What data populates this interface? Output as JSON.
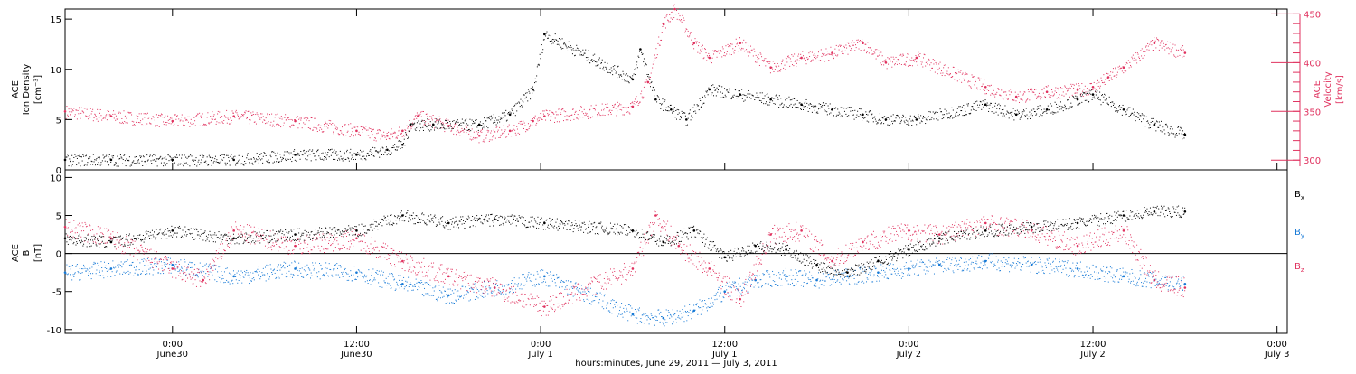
{
  "colors": {
    "black": "#000000",
    "red": "#e0325f",
    "blue": "#1679d6",
    "axis": "#000000"
  },
  "time": {
    "start": "2011-06-29T17:00",
    "end": "2011-07-03T00:40",
    "xticks": [
      {
        "t": "2011-06-30T00:00",
        "time": "0:00",
        "day": "June30"
      },
      {
        "t": "2011-06-30T12:00",
        "time": "12:00",
        "day": "June30"
      },
      {
        "t": "2011-07-01T00:00",
        "time": "0:00",
        "day": "July 1"
      },
      {
        "t": "2011-07-01T12:00",
        "time": "12:00",
        "day": "July 1"
      },
      {
        "t": "2011-07-02T00:00",
        "time": "0:00",
        "day": "July 2"
      },
      {
        "t": "2011-07-02T12:00",
        "time": "12:00",
        "day": "July 2"
      },
      {
        "t": "2011-07-03T00:00",
        "time": "0:00",
        "day": "July 3"
      }
    ],
    "xlabel": "hours:minutes, June 29, 2011 — July  3, 2011"
  },
  "panel1": {
    "ylabel_left": [
      "ACE",
      "Ion Density",
      "[cm⁻³]"
    ],
    "ylabel_right": [
      "ACE",
      "Velocity",
      "[km/s]"
    ],
    "left_range": [
      0,
      16
    ],
    "left_ticks": [
      "0",
      "5",
      "10",
      "15"
    ],
    "right_range": [
      290,
      455
    ],
    "right_ticks": [
      "300",
      "350",
      "400",
      "450"
    ]
  },
  "panel2": {
    "ylabel_left": [
      "ACE",
      "B",
      "[nT]"
    ],
    "range": [
      -10.5,
      11
    ],
    "ticks": [
      "-10",
      "-5",
      "0",
      "5",
      "10"
    ],
    "legend": [
      {
        "label": "B",
        "sub": "x",
        "color": "#000000"
      },
      {
        "label": "B",
        "sub": "y",
        "color": "#1679d6"
      },
      {
        "label": "B",
        "sub": "z",
        "color": "#e0325f"
      }
    ]
  },
  "chart_data": [
    {
      "type": "scatter",
      "title": "",
      "xlabel": "hours:minutes, June 29, 2011 — July  3, 2011",
      "ylabel": "ACE Ion Density [cm⁻³]",
      "ylim": [
        0,
        16
      ],
      "y2label": "ACE Velocity [km/s]",
      "y2lim": [
        290,
        455
      ],
      "series": [
        {
          "name": "Ion Density",
          "color": "#000000",
          "axis": "left",
          "x": [
            "2011-06-29T17:00",
            "2011-06-29T20:00",
            "2011-06-30T00:00",
            "2011-06-30T04:00",
            "2011-06-30T08:00",
            "2011-06-30T12:00",
            "2011-06-30T14:00",
            "2011-06-30T15:00",
            "2011-06-30T15:30",
            "2011-06-30T17:00",
            "2011-06-30T20:00",
            "2011-06-30T22:00",
            "2011-06-30T23:30",
            "2011-07-01T00:15",
            "2011-07-01T06:00",
            "2011-07-01T06:30",
            "2011-07-01T07:30",
            "2011-07-01T08:30",
            "2011-07-01T09:30",
            "2011-07-01T11:00",
            "2011-07-01T13:00",
            "2011-07-01T15:00",
            "2011-07-01T17:00",
            "2011-07-01T19:00",
            "2011-07-01T21:00",
            "2011-07-01T22:30",
            "2011-07-02T00:30",
            "2011-07-02T05:00",
            "2011-07-02T07:00",
            "2011-07-02T09:00",
            "2011-07-02T11:00",
            "2011-07-02T12:00",
            "2011-07-02T14:00",
            "2011-07-02T16:00",
            "2011-07-02T18:00"
          ],
          "y": [
            1.0,
            1.0,
            1.0,
            1.0,
            1.5,
            1.5,
            2.0,
            2.5,
            4.5,
            4.5,
            4.5,
            5.5,
            8.0,
            13.5,
            9.0,
            12.0,
            7.0,
            6.0,
            5.0,
            8.0,
            7.5,
            7.0,
            6.5,
            6.0,
            5.5,
            5.0,
            5.0,
            6.5,
            5.5,
            6.0,
            7.0,
            7.5,
            6.0,
            4.5,
            3.5
          ]
        },
        {
          "name": "Velocity",
          "color": "#e0325f",
          "axis": "right",
          "x": [
            "2011-06-29T17:00",
            "2011-06-29T20:00",
            "2011-06-30T00:00",
            "2011-06-30T04:00",
            "2011-06-30T08:00",
            "2011-06-30T12:00",
            "2011-06-30T14:00",
            "2011-06-30T15:00",
            "2011-06-30T16:00",
            "2011-06-30T18:00",
            "2011-06-30T20:00",
            "2011-06-30T22:00",
            "2011-06-30T23:30",
            "2011-07-01T00:15",
            "2011-07-01T06:00",
            "2011-07-01T07:00",
            "2011-07-01T08:00",
            "2011-07-01T08:45",
            "2011-07-01T10:00",
            "2011-07-01T11:00",
            "2011-07-01T13:00",
            "2011-07-01T15:00",
            "2011-07-01T17:00",
            "2011-07-01T19:00",
            "2011-07-01T21:00",
            "2011-07-01T22:30",
            "2011-07-02T00:30",
            "2011-07-02T05:00",
            "2011-07-02T07:00",
            "2011-07-02T09:00",
            "2011-07-02T11:00",
            "2011-07-02T12:00",
            "2011-07-02T13:00",
            "2011-07-02T14:00",
            "2011-07-02T16:00",
            "2011-07-02T18:00"
          ],
          "y": [
            350,
            345,
            340,
            345,
            340,
            330,
            325,
            330,
            345,
            335,
            325,
            330,
            340,
            345,
            355,
            380,
            440,
            455,
            420,
            405,
            420,
            395,
            405,
            410,
            420,
            400,
            405,
            375,
            365,
            370,
            372,
            375,
            385,
            395,
            420,
            410
          ]
        }
      ]
    },
    {
      "type": "scatter",
      "title": "",
      "xlabel": "hours:minutes, June 29, 2011 — July  3, 2011",
      "ylabel": "ACE B [nT]",
      "ylim": [
        -10.5,
        11
      ],
      "series": [
        {
          "name": "Bx",
          "color": "#000000",
          "x": [
            "2011-06-29T17:00",
            "2011-06-29T20:00",
            "2011-06-30T00:00",
            "2011-06-30T04:00",
            "2011-06-30T08:00",
            "2011-06-30T12:00",
            "2011-06-30T15:00",
            "2011-06-30T18:00",
            "2011-06-30T21:00",
            "2011-07-01T00:15",
            "2011-07-01T06:00",
            "2011-07-01T08:00",
            "2011-07-01T10:00",
            "2011-07-01T12:00",
            "2011-07-01T14:00",
            "2011-07-01T16:00",
            "2011-07-01T18:00",
            "2011-07-01T20:00",
            "2011-07-01T22:00",
            "2011-07-02T00:00",
            "2011-07-02T02:00",
            "2011-07-02T05:00",
            "2011-07-02T08:00",
            "2011-07-02T11:00",
            "2011-07-02T14:00",
            "2011-07-02T16:00",
            "2011-07-02T18:00"
          ],
          "y": [
            2.0,
            1.5,
            3.0,
            2.0,
            2.5,
            3.0,
            5.0,
            4.0,
            4.5,
            4.0,
            3.0,
            1.5,
            3.0,
            -0.5,
            1.0,
            0.5,
            -1.5,
            -2.5,
            -1.0,
            0.5,
            2.0,
            3.0,
            3.5,
            4.0,
            5.0,
            5.5,
            5.5
          ]
        },
        {
          "name": "By",
          "color": "#1679d6",
          "x": [
            "2011-06-29T17:00",
            "2011-06-29T20:00",
            "2011-06-30T00:00",
            "2011-06-30T04:00",
            "2011-06-30T08:00",
            "2011-06-30T12:00",
            "2011-06-30T15:00",
            "2011-06-30T18:00",
            "2011-06-30T21:00",
            "2011-07-01T00:15",
            "2011-07-01T06:00",
            "2011-07-01T08:00",
            "2011-07-01T10:00",
            "2011-07-01T12:00",
            "2011-07-01T14:00",
            "2011-07-01T16:00",
            "2011-07-01T18:00",
            "2011-07-01T20:00",
            "2011-07-01T22:00",
            "2011-07-02T00:00",
            "2011-07-02T02:00",
            "2011-07-02T05:00",
            "2011-07-02T08:00",
            "2011-07-02T11:00",
            "2011-07-02T14:00",
            "2011-07-02T16:00",
            "2011-07-02T18:00"
          ],
          "y": [
            -2.5,
            -2.0,
            -1.5,
            -3.0,
            -2.0,
            -2.5,
            -4.0,
            -5.5,
            -4.5,
            -3.0,
            -8.0,
            -8.5,
            -7.5,
            -5.0,
            -3.5,
            -3.0,
            -3.5,
            -3.0,
            -2.5,
            -2.0,
            -1.5,
            -1.0,
            -1.5,
            -2.0,
            -3.0,
            -3.5,
            -4.0
          ]
        },
        {
          "name": "Bz",
          "color": "#e0325f",
          "x": [
            "2011-06-29T17:00",
            "2011-06-29T20:00",
            "2011-06-30T00:00",
            "2011-06-30T02:00",
            "2011-06-30T04:00",
            "2011-06-30T08:00",
            "2011-06-30T12:00",
            "2011-06-30T15:00",
            "2011-06-30T18:00",
            "2011-06-30T21:00",
            "2011-07-01T00:15",
            "2011-07-01T06:00",
            "2011-07-01T07:30",
            "2011-07-01T09:00",
            "2011-07-01T11:00",
            "2011-07-01T13:00",
            "2011-07-01T15:00",
            "2011-07-01T17:00",
            "2011-07-01T19:00",
            "2011-07-01T21:00",
            "2011-07-02T00:00",
            "2011-07-02T02:00",
            "2011-07-02T05:00",
            "2011-07-02T08:00",
            "2011-07-02T11:00",
            "2011-07-02T14:00",
            "2011-07-02T16:00",
            "2011-07-02T18:00"
          ],
          "y": [
            3.5,
            2.0,
            -2.0,
            -3.5,
            3.0,
            1.0,
            2.0,
            -1.0,
            -3.0,
            -4.5,
            -7.0,
            -2.0,
            5.0,
            1.0,
            -2.0,
            -6.0,
            2.5,
            3.0,
            -1.0,
            1.5,
            3.0,
            2.5,
            4.0,
            3.0,
            1.0,
            3.0,
            -3.5,
            -4.5
          ]
        }
      ],
      "legend": "right"
    }
  ]
}
